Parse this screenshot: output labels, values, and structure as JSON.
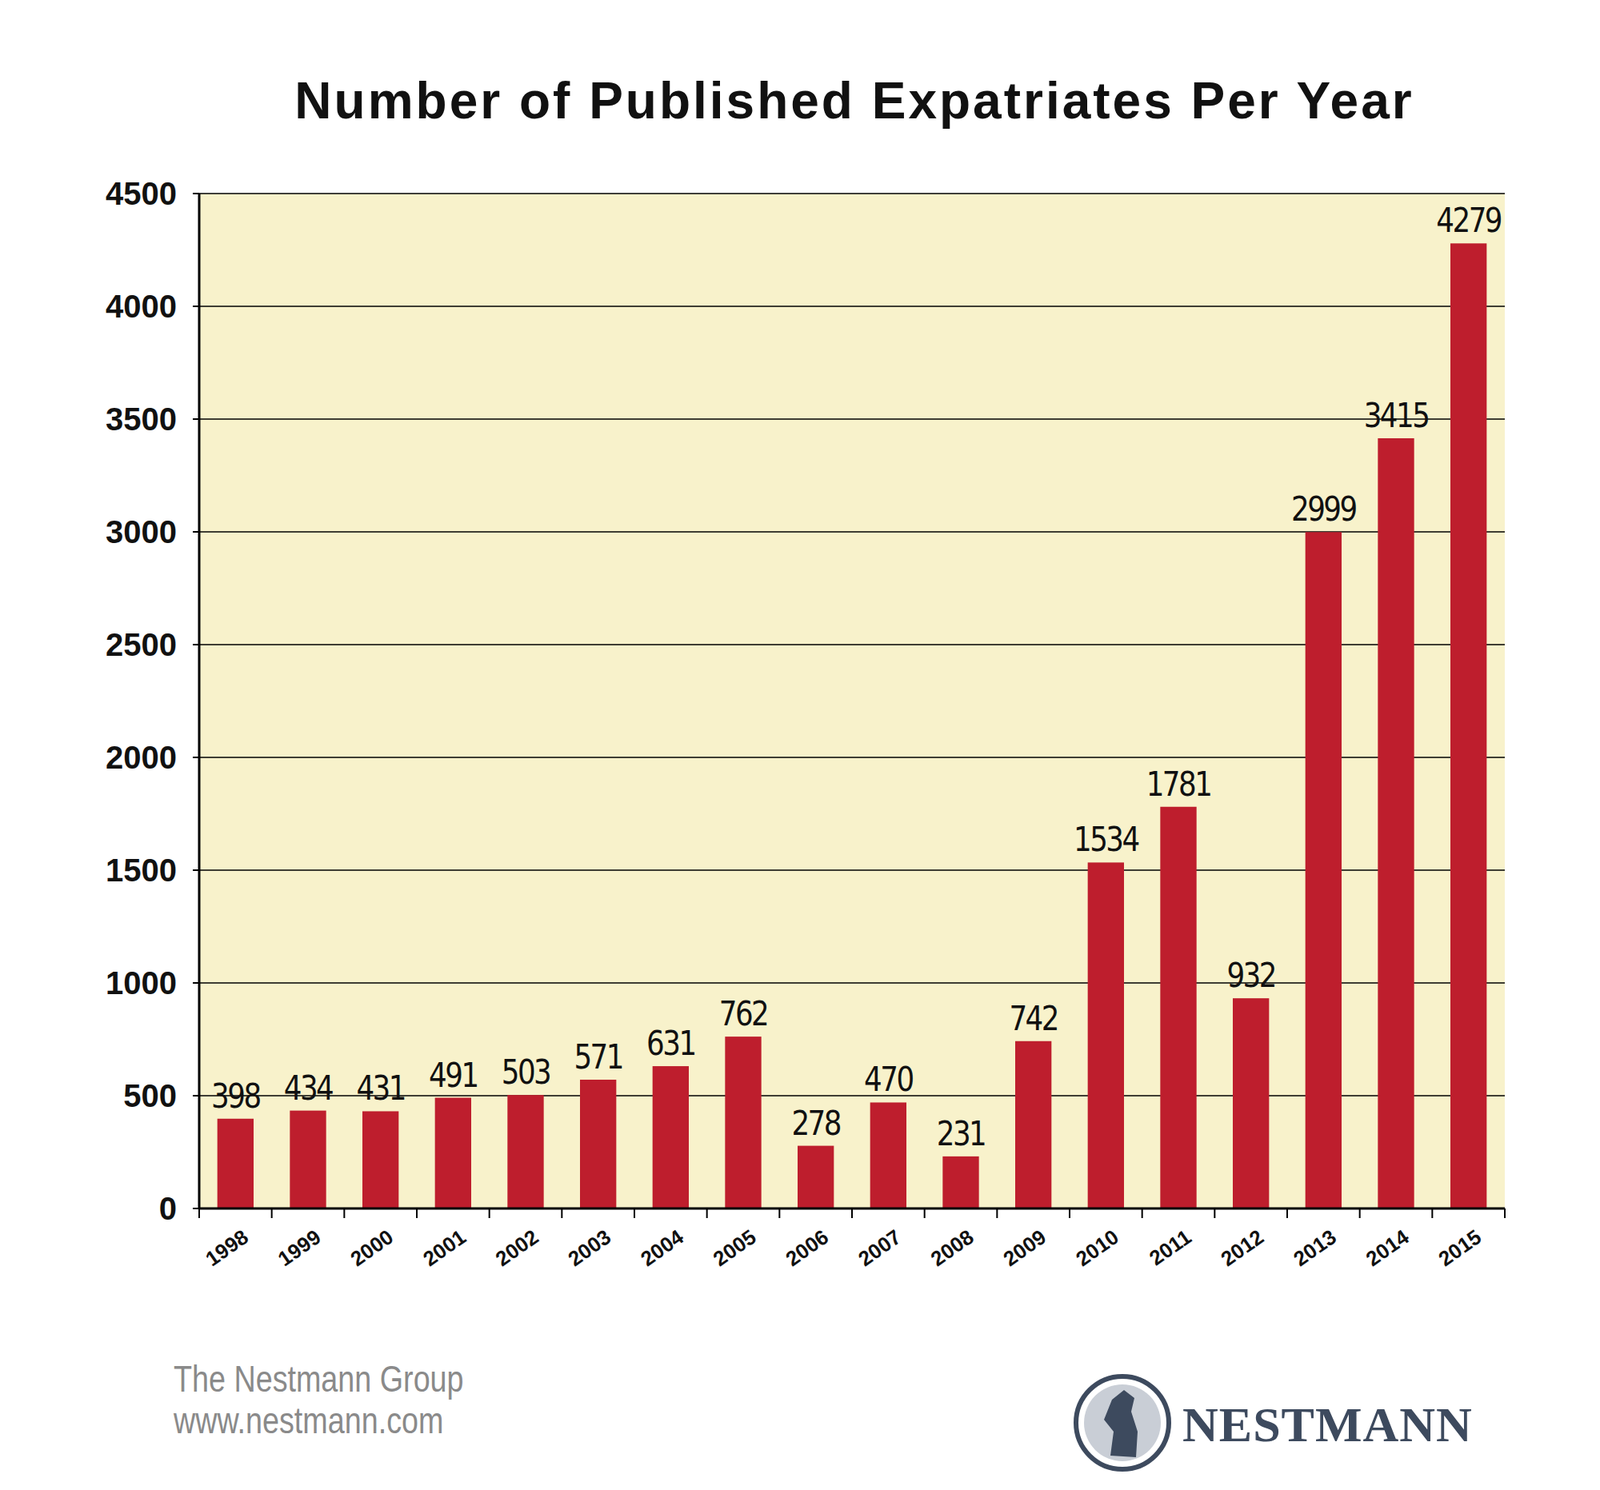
{
  "chart_data": {
    "type": "bar",
    "title": "Number of Published Expatriates Per Year",
    "categories": [
      "1998",
      "1999",
      "2000",
      "2001",
      "2002",
      "2003",
      "2004",
      "2005",
      "2006",
      "2007",
      "2008",
      "2009",
      "2010",
      "2011",
      "2012",
      "2013",
      "2014",
      "2015"
    ],
    "values": [
      398,
      434,
      431,
      491,
      503,
      571,
      631,
      762,
      278,
      470,
      231,
      742,
      1534,
      1781,
      932,
      2999,
      3415,
      4279
    ],
    "color": "#be1e2d",
    "ylim": [
      0,
      4500
    ],
    "yticks": [
      0,
      500,
      1000,
      1500,
      2000,
      2500,
      3000,
      3500,
      4000,
      4500
    ],
    "grid": true,
    "data_labels": true,
    "annotations": [
      "The Nestmann Group",
      "www.nestmann.com",
      "NESTMANN"
    ]
  }
}
